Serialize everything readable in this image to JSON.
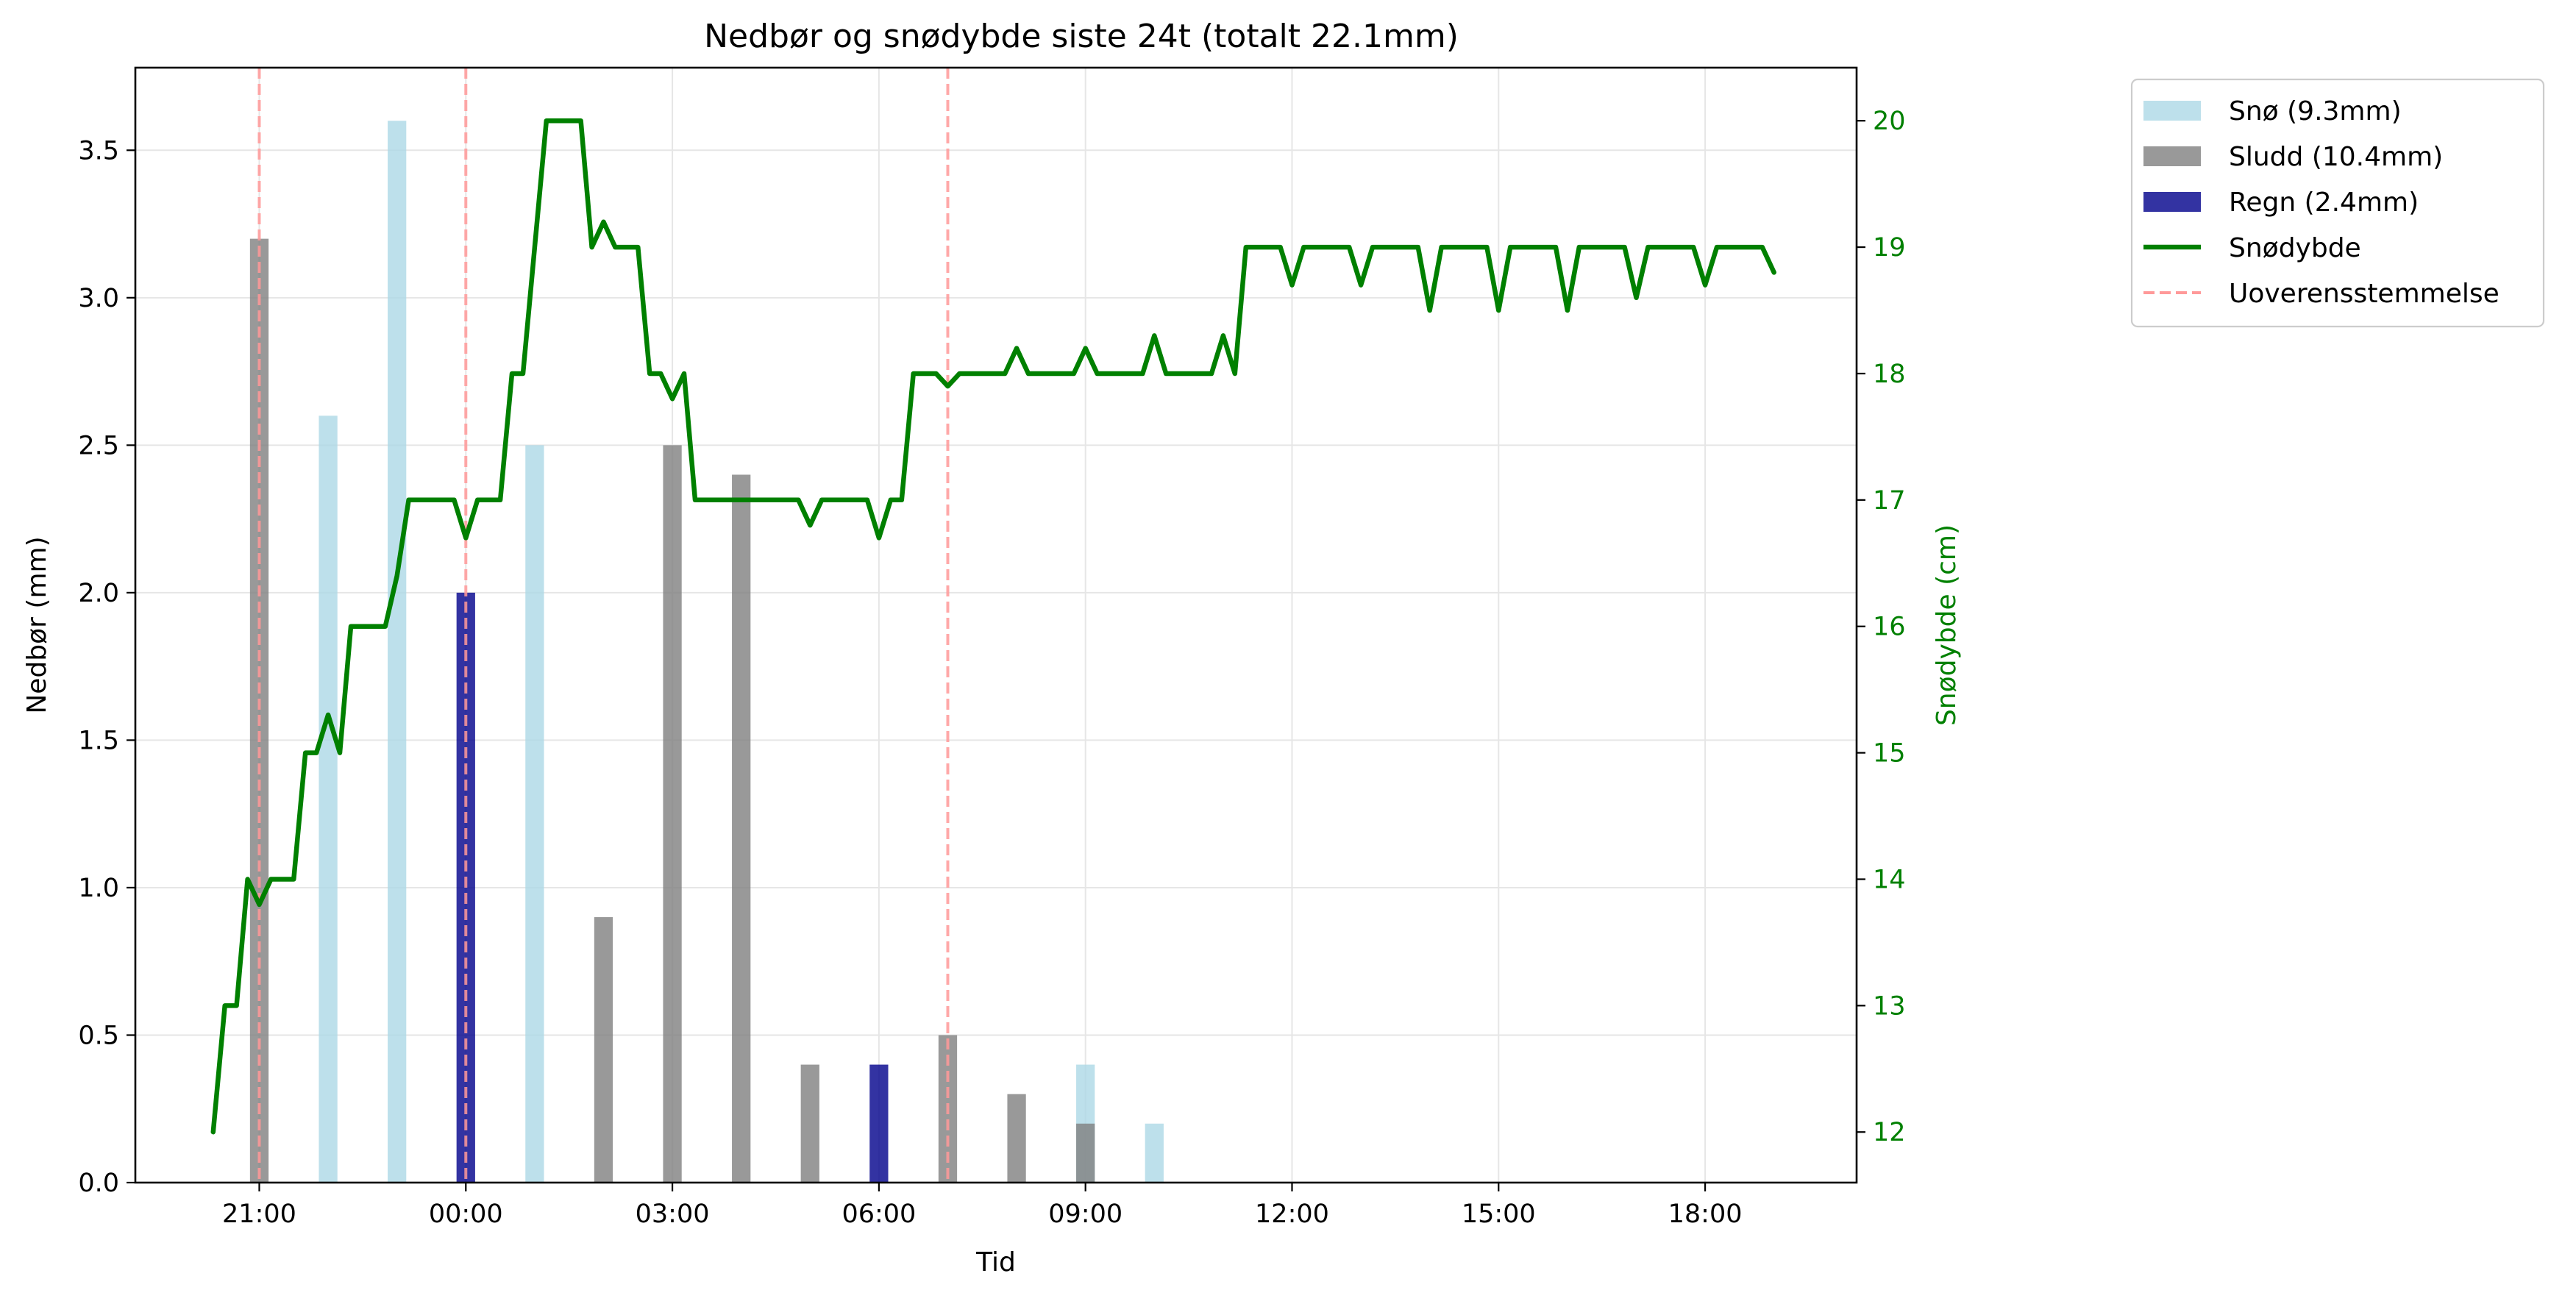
{
  "chart_data": {
    "type": "bar",
    "title": "Nedbør og snødybde siste 24t (totalt 22.1mm)",
    "xlabel": "Tid",
    "ylabel": "Nedbør (mm)",
    "y2label": "Snødybde (cm)",
    "ylim": [
      0,
      3.78
    ],
    "y2lim": [
      11.6,
      20.42
    ],
    "yticks": [
      0.0,
      0.5,
      1.0,
      1.5,
      2.0,
      2.5,
      3.0,
      3.5
    ],
    "y2ticks": [
      12,
      13,
      14,
      15,
      16,
      17,
      18,
      19,
      20
    ],
    "xlim": [
      -1.8,
      23.2
    ],
    "xticks": [
      {
        "x": 0,
        "label": "21:00"
      },
      {
        "x": 3,
        "label": "00:00"
      },
      {
        "x": 6,
        "label": "03:00"
      },
      {
        "x": 9,
        "label": "06:00"
      },
      {
        "x": 12,
        "label": "09:00"
      },
      {
        "x": 15,
        "label": "12:00"
      },
      {
        "x": 18,
        "label": "15:00"
      },
      {
        "x": 21,
        "label": "18:00"
      }
    ],
    "grid": true,
    "legend_position": "outside-top-right",
    "colors": {
      "snow": "#add8e6",
      "sleet": "#808080",
      "rain": "#00008b",
      "depth": "#008000",
      "mismatch": "#ff9999"
    },
    "series": [
      {
        "name": "Snø (9.3mm)",
        "kind": "bar",
        "color": "#add8e6",
        "points": [
          [
            1,
            2.6
          ],
          [
            2,
            3.6
          ],
          [
            4,
            2.5
          ],
          [
            12,
            0.4
          ],
          [
            13,
            0.2
          ]
        ]
      },
      {
        "name": "Sludd (10.4mm)",
        "kind": "bar",
        "color": "#808080",
        "points": [
          [
            0,
            3.2
          ],
          [
            5,
            0.9
          ],
          [
            6,
            2.5
          ],
          [
            7,
            2.4
          ],
          [
            8,
            0.4
          ],
          [
            10,
            0.5
          ],
          [
            11,
            0.3
          ],
          [
            12,
            0.2
          ]
        ]
      },
      {
        "name": "Regn (2.4mm)",
        "kind": "bar",
        "color": "#00008b",
        "points": [
          [
            3,
            2.0
          ],
          [
            9,
            0.4
          ]
        ]
      },
      {
        "name": "Snødybde",
        "kind": "line",
        "color": "#008000",
        "points": [
          [
            -0.67,
            12.0
          ],
          [
            -0.5,
            13.0
          ],
          [
            -0.33,
            13.0
          ],
          [
            -0.17,
            14.0
          ],
          [
            0,
            13.8
          ],
          [
            0.17,
            14.0
          ],
          [
            0.33,
            14.0
          ],
          [
            0.5,
            14.0
          ],
          [
            0.67,
            15.0
          ],
          [
            0.83,
            15.0
          ],
          [
            1,
            15.3
          ],
          [
            1.17,
            15.0
          ],
          [
            1.33,
            16.0
          ],
          [
            1.5,
            16.0
          ],
          [
            1.67,
            16.0
          ],
          [
            1.83,
            16.0
          ],
          [
            2,
            16.4
          ],
          [
            2.17,
            17.0
          ],
          [
            2.33,
            17.0
          ],
          [
            2.5,
            17.0
          ],
          [
            2.67,
            17.0
          ],
          [
            2.83,
            17.0
          ],
          [
            3,
            16.7
          ],
          [
            3.17,
            17.0
          ],
          [
            3.33,
            17.0
          ],
          [
            3.5,
            17.0
          ],
          [
            3.67,
            18.0
          ],
          [
            3.83,
            18.0
          ],
          [
            4,
            19.0
          ],
          [
            4.17,
            20.0
          ],
          [
            4.33,
            20.0
          ],
          [
            4.5,
            20.0
          ],
          [
            4.67,
            20.0
          ],
          [
            4.83,
            19.0
          ],
          [
            5,
            19.2
          ],
          [
            5.17,
            19.0
          ],
          [
            5.33,
            19.0
          ],
          [
            5.5,
            19.0
          ],
          [
            5.67,
            18.0
          ],
          [
            5.83,
            18.0
          ],
          [
            6,
            17.8
          ],
          [
            6.17,
            18.0
          ],
          [
            6.33,
            17.0
          ],
          [
            6.5,
            17.0
          ],
          [
            6.67,
            17.0
          ],
          [
            6.83,
            17.0
          ],
          [
            7,
            17.0
          ],
          [
            7.17,
            17.0
          ],
          [
            7.33,
            17.0
          ],
          [
            7.5,
            17.0
          ],
          [
            7.67,
            17.0
          ],
          [
            7.83,
            17.0
          ],
          [
            8,
            16.8
          ],
          [
            8.17,
            17.0
          ],
          [
            8.33,
            17.0
          ],
          [
            8.5,
            17.0
          ],
          [
            8.67,
            17.0
          ],
          [
            8.83,
            17.0
          ],
          [
            9,
            16.7
          ],
          [
            9.17,
            17.0
          ],
          [
            9.33,
            17.0
          ],
          [
            9.5,
            18.0
          ],
          [
            9.67,
            18.0
          ],
          [
            9.83,
            18.0
          ],
          [
            10,
            17.9
          ],
          [
            10.17,
            18.0
          ],
          [
            10.33,
            18.0
          ],
          [
            10.5,
            18.0
          ],
          [
            10.67,
            18.0
          ],
          [
            10.83,
            18.0
          ],
          [
            11,
            18.2
          ],
          [
            11.17,
            18.0
          ],
          [
            11.33,
            18.0
          ],
          [
            11.5,
            18.0
          ],
          [
            11.67,
            18.0
          ],
          [
            11.83,
            18.0
          ],
          [
            12,
            18.2
          ],
          [
            12.17,
            18.0
          ],
          [
            12.33,
            18.0
          ],
          [
            12.5,
            18.0
          ],
          [
            12.67,
            18.0
          ],
          [
            12.83,
            18.0
          ],
          [
            13,
            18.3
          ],
          [
            13.17,
            18.0
          ],
          [
            13.33,
            18.0
          ],
          [
            13.5,
            18.0
          ],
          [
            13.67,
            18.0
          ],
          [
            13.83,
            18.0
          ],
          [
            14,
            18.3
          ],
          [
            14.17,
            18.0
          ],
          [
            14.33,
            19.0
          ],
          [
            14.5,
            19.0
          ],
          [
            14.67,
            19.0
          ],
          [
            14.83,
            19.0
          ],
          [
            15,
            18.7
          ],
          [
            15.17,
            19.0
          ],
          [
            15.33,
            19.0
          ],
          [
            15.5,
            19.0
          ],
          [
            15.67,
            19.0
          ],
          [
            15.83,
            19.0
          ],
          [
            16,
            18.7
          ],
          [
            16.17,
            19.0
          ],
          [
            16.33,
            19.0
          ],
          [
            16.5,
            19.0
          ],
          [
            16.67,
            19.0
          ],
          [
            16.83,
            19.0
          ],
          [
            17,
            18.5
          ],
          [
            17.17,
            19.0
          ],
          [
            17.33,
            19.0
          ],
          [
            17.5,
            19.0
          ],
          [
            17.67,
            19.0
          ],
          [
            17.83,
            19.0
          ],
          [
            18,
            18.5
          ],
          [
            18.17,
            19.0
          ],
          [
            18.33,
            19.0
          ],
          [
            18.5,
            19.0
          ],
          [
            18.67,
            19.0
          ],
          [
            18.83,
            19.0
          ],
          [
            19,
            18.5
          ],
          [
            19.17,
            19.0
          ],
          [
            19.33,
            19.0
          ],
          [
            19.5,
            19.0
          ],
          [
            19.67,
            19.0
          ],
          [
            19.83,
            19.0
          ],
          [
            20,
            18.6
          ],
          [
            20.17,
            19.0
          ],
          [
            20.33,
            19.0
          ],
          [
            20.5,
            19.0
          ],
          [
            20.67,
            19.0
          ],
          [
            20.83,
            19.0
          ],
          [
            21,
            18.7
          ],
          [
            21.17,
            19.0
          ],
          [
            21.33,
            19.0
          ],
          [
            21.5,
            19.0
          ],
          [
            21.67,
            19.0
          ],
          [
            21.83,
            19.0
          ],
          [
            22,
            18.8
          ]
        ]
      },
      {
        "name": "Uoverensstemmelse",
        "kind": "vline",
        "color": "#ff9999",
        "x": [
          0,
          3,
          10
        ]
      }
    ]
  }
}
